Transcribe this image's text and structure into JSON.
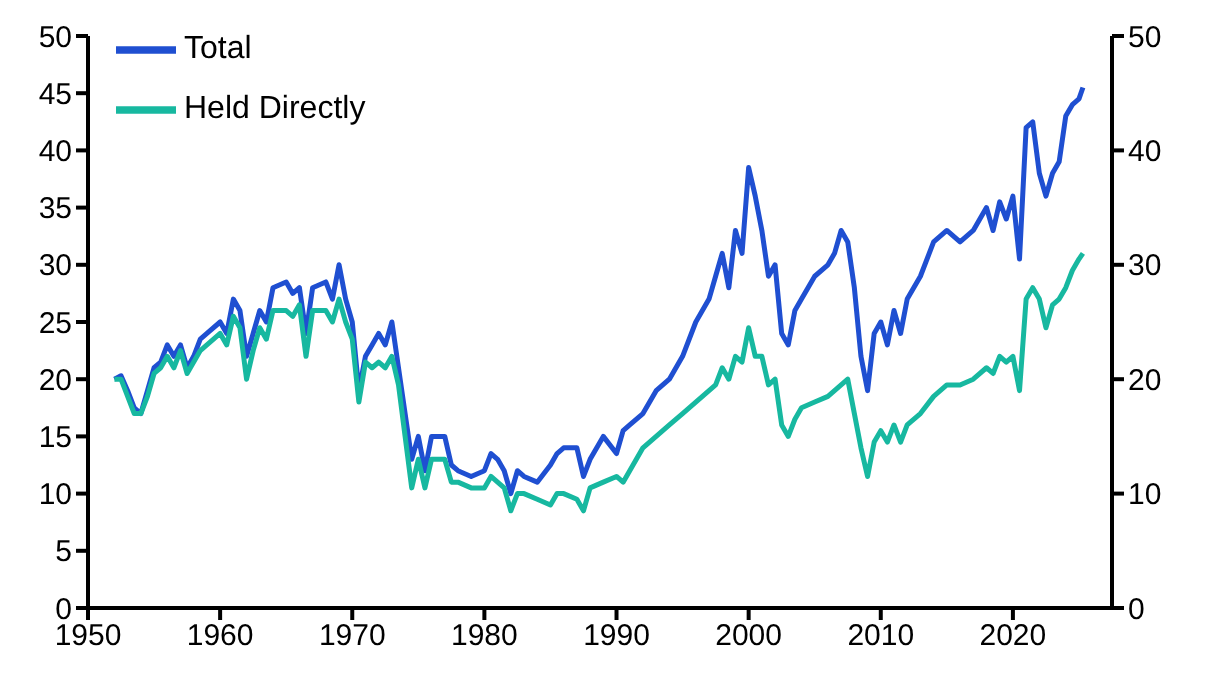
{
  "chart_data": {
    "type": "line",
    "x": [
      1952,
      1952.5,
      1953,
      1953.5,
      1954,
      1954.5,
      1955,
      1955.5,
      1956,
      1956.5,
      1957,
      1957.5,
      1958,
      1958.5,
      1959,
      1960,
      1960.5,
      1961,
      1961.5,
      1962,
      1962.5,
      1963,
      1963.5,
      1964,
      1965,
      1965.5,
      1966,
      1966.5,
      1967,
      1968,
      1968.5,
      1969,
      1969.5,
      1970,
      1970.5,
      1971,
      1971.5,
      1972,
      1972.5,
      1973,
      1973.5,
      1974,
      1974.5,
      1975,
      1975.5,
      1976,
      1977,
      1977.5,
      1978,
      1979,
      1980,
      1980.5,
      1981,
      1981.5,
      1982,
      1982.5,
      1983,
      1984,
      1985,
      1985.5,
      1986,
      1987,
      1987.5,
      1988,
      1989,
      1990,
      1990.5,
      1991,
      1992,
      1993,
      1994,
      1995,
      1996,
      1997,
      1997.5,
      1998,
      1998.5,
      1999,
      1999.5,
      2000,
      2000.5,
      2001,
      2001.5,
      2002,
      2002.5,
      2003,
      2003.5,
      2004,
      2005,
      2006,
      2006.5,
      2007,
      2007.5,
      2008,
      2008.5,
      2009,
      2009.5,
      2010,
      2010.5,
      2011,
      2011.5,
      2012,
      2013,
      2014,
      2015,
      2016,
      2017,
      2018,
      2018.5,
      2019,
      2019.5,
      2020,
      2020.5,
      2021,
      2021.5,
      2022,
      2022.5,
      2023,
      2023.5,
      2024,
      2024.5,
      2025,
      2025.3
    ],
    "series": [
      {
        "name": "Total",
        "color": "#1f4fd1",
        "values": [
          20,
          20.3,
          19,
          17.5,
          17,
          19,
          21,
          21.5,
          23,
          22,
          23,
          21,
          22,
          23.5,
          24,
          25,
          24,
          27,
          26,
          22,
          24,
          26,
          25,
          28,
          28.5,
          27.5,
          28,
          24,
          28,
          28.5,
          27,
          30,
          27,
          25,
          19,
          22,
          23,
          24,
          23,
          25,
          21,
          17,
          13,
          15,
          12,
          15,
          15,
          12.5,
          12,
          11.5,
          12,
          13.5,
          13,
          12,
          10,
          12,
          11.5,
          11,
          12.5,
          13.5,
          14,
          14,
          11.5,
          13,
          15,
          13.5,
          15.5,
          16,
          17,
          19,
          20,
          22,
          25,
          27,
          29,
          31,
          28,
          33,
          31,
          38.5,
          36,
          33,
          29,
          30,
          24,
          23,
          26,
          27,
          29,
          30,
          31,
          33,
          32,
          28,
          22,
          19,
          24,
          25,
          23,
          26,
          24,
          27,
          29,
          32,
          33,
          32,
          33,
          35,
          33,
          35.5,
          34,
          36,
          30.5,
          42,
          42.5,
          38,
          36,
          38,
          39,
          43,
          44,
          44.5,
          45.5
        ]
      },
      {
        "name": "Held Directly",
        "color": "#17b8a0",
        "values": [
          20,
          20,
          18.5,
          17,
          17,
          18.5,
          20.5,
          21,
          22,
          21,
          22.5,
          20.5,
          21.5,
          22.5,
          23,
          24,
          23,
          25.5,
          24.5,
          20,
          22.5,
          24.5,
          23.5,
          26,
          26,
          25.5,
          26.5,
          22,
          26,
          26,
          25,
          27,
          25,
          23.5,
          18,
          21.5,
          21,
          21.5,
          21,
          22,
          19.5,
          15,
          10.5,
          13,
          10.5,
          13,
          13,
          11,
          11,
          10.5,
          10.5,
          11.5,
          11,
          10.5,
          8.5,
          10,
          10,
          9.5,
          9,
          10,
          10,
          9.5,
          8.5,
          10.5,
          11,
          11.5,
          11,
          12,
          14,
          15,
          16,
          17,
          18,
          19,
          19.5,
          21,
          20,
          22,
          21.5,
          24.5,
          22,
          22,
          19.5,
          20,
          16,
          15,
          16.5,
          17.5,
          18,
          18.5,
          19,
          19.5,
          20,
          17,
          14,
          11.5,
          14.5,
          15.5,
          14.5,
          16,
          14.5,
          16,
          17,
          18.5,
          19.5,
          19.5,
          20,
          21,
          20.5,
          22,
          21.5,
          22,
          19,
          27,
          28,
          27,
          24.5,
          26.5,
          27,
          28,
          29.5,
          30.5,
          31
        ]
      }
    ],
    "xlim": [
      1950,
      2027.5
    ],
    "xticks": [
      1950,
      1960,
      1970,
      1980,
      1990,
      2000,
      2010,
      2020
    ],
    "ylim": [
      0,
      50
    ],
    "yticks": [
      0,
      5,
      10,
      15,
      20,
      25,
      30,
      35,
      40,
      45,
      50
    ],
    "y2lim": [
      0,
      50
    ],
    "y2ticks": [
      0,
      10,
      20,
      30,
      40,
      50
    ],
    "legend": "top left",
    "grid": false,
    "marker": "none",
    "line_style": "solid"
  }
}
